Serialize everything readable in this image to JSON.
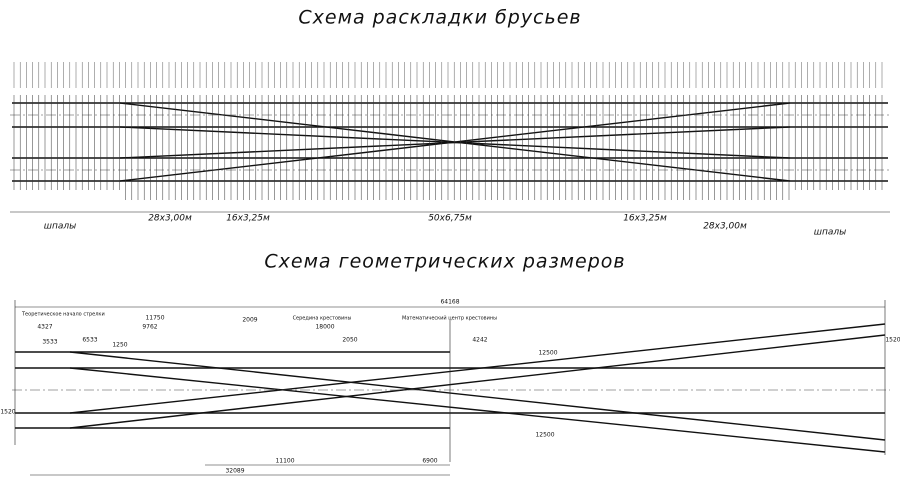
{
  "top_scheme": {
    "title": "Схема раскладки брусьев",
    "segments": [
      "шпалы",
      "28х3,00м",
      "16х3,25м",
      "50х6,75м",
      "16х3,25м",
      "28х3,00м",
      "шпалы"
    ]
  },
  "bottom_scheme": {
    "title": "Схема геометрических размеров",
    "dimensions": [
      "64168",
      "11750",
      "9762",
      "4327",
      "3533",
      "18000",
      "2009",
      "32089",
      "11100",
      "6900",
      "12500",
      "12500",
      "4242",
      "1520",
      "1520",
      "6533",
      "1250",
      "2050"
    ],
    "notes": [
      "Теоретическое начало стрелки",
      "Математический центр крестовины",
      "Середина крестовины"
    ]
  }
}
